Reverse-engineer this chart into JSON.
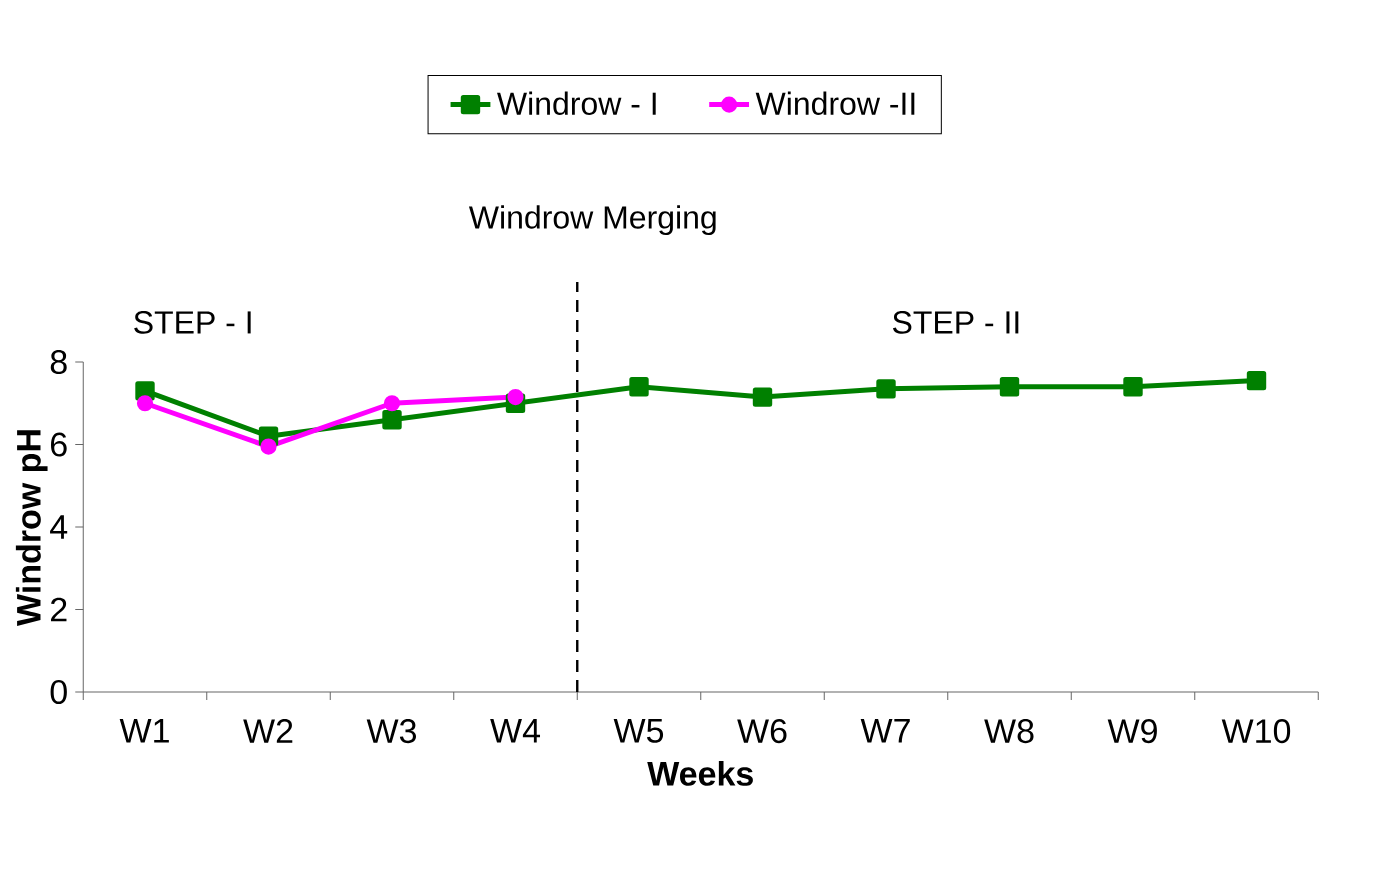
{
  "chart_data": {
    "type": "line",
    "xlabel": "Weeks",
    "ylabel": "Windrow pH",
    "categories": [
      "W1",
      "W2",
      "W3",
      "W4",
      "W5",
      "W6",
      "W7",
      "W8",
      "W9",
      "W10"
    ],
    "series": [
      {
        "name": "Windrow - I",
        "color": "#008000",
        "marker": "square",
        "values": [
          7.3,
          6.2,
          6.6,
          7.0,
          7.4,
          7.15,
          7.35,
          7.4,
          7.4,
          7.55
        ]
      },
      {
        "name": "Windrow -II",
        "color": "#ff00ff",
        "marker": "circle",
        "values": [
          7.0,
          5.95,
          7.0,
          7.15,
          null,
          null,
          null,
          null,
          null,
          null
        ]
      }
    ],
    "ylim": [
      0,
      8
    ],
    "yticks": [
      0,
      2,
      4,
      6,
      8
    ],
    "grid": false,
    "legend": "top",
    "line_style": "solid",
    "annotations": [
      "Windrow Merging",
      "STEP - I",
      "STEP - II"
    ]
  }
}
